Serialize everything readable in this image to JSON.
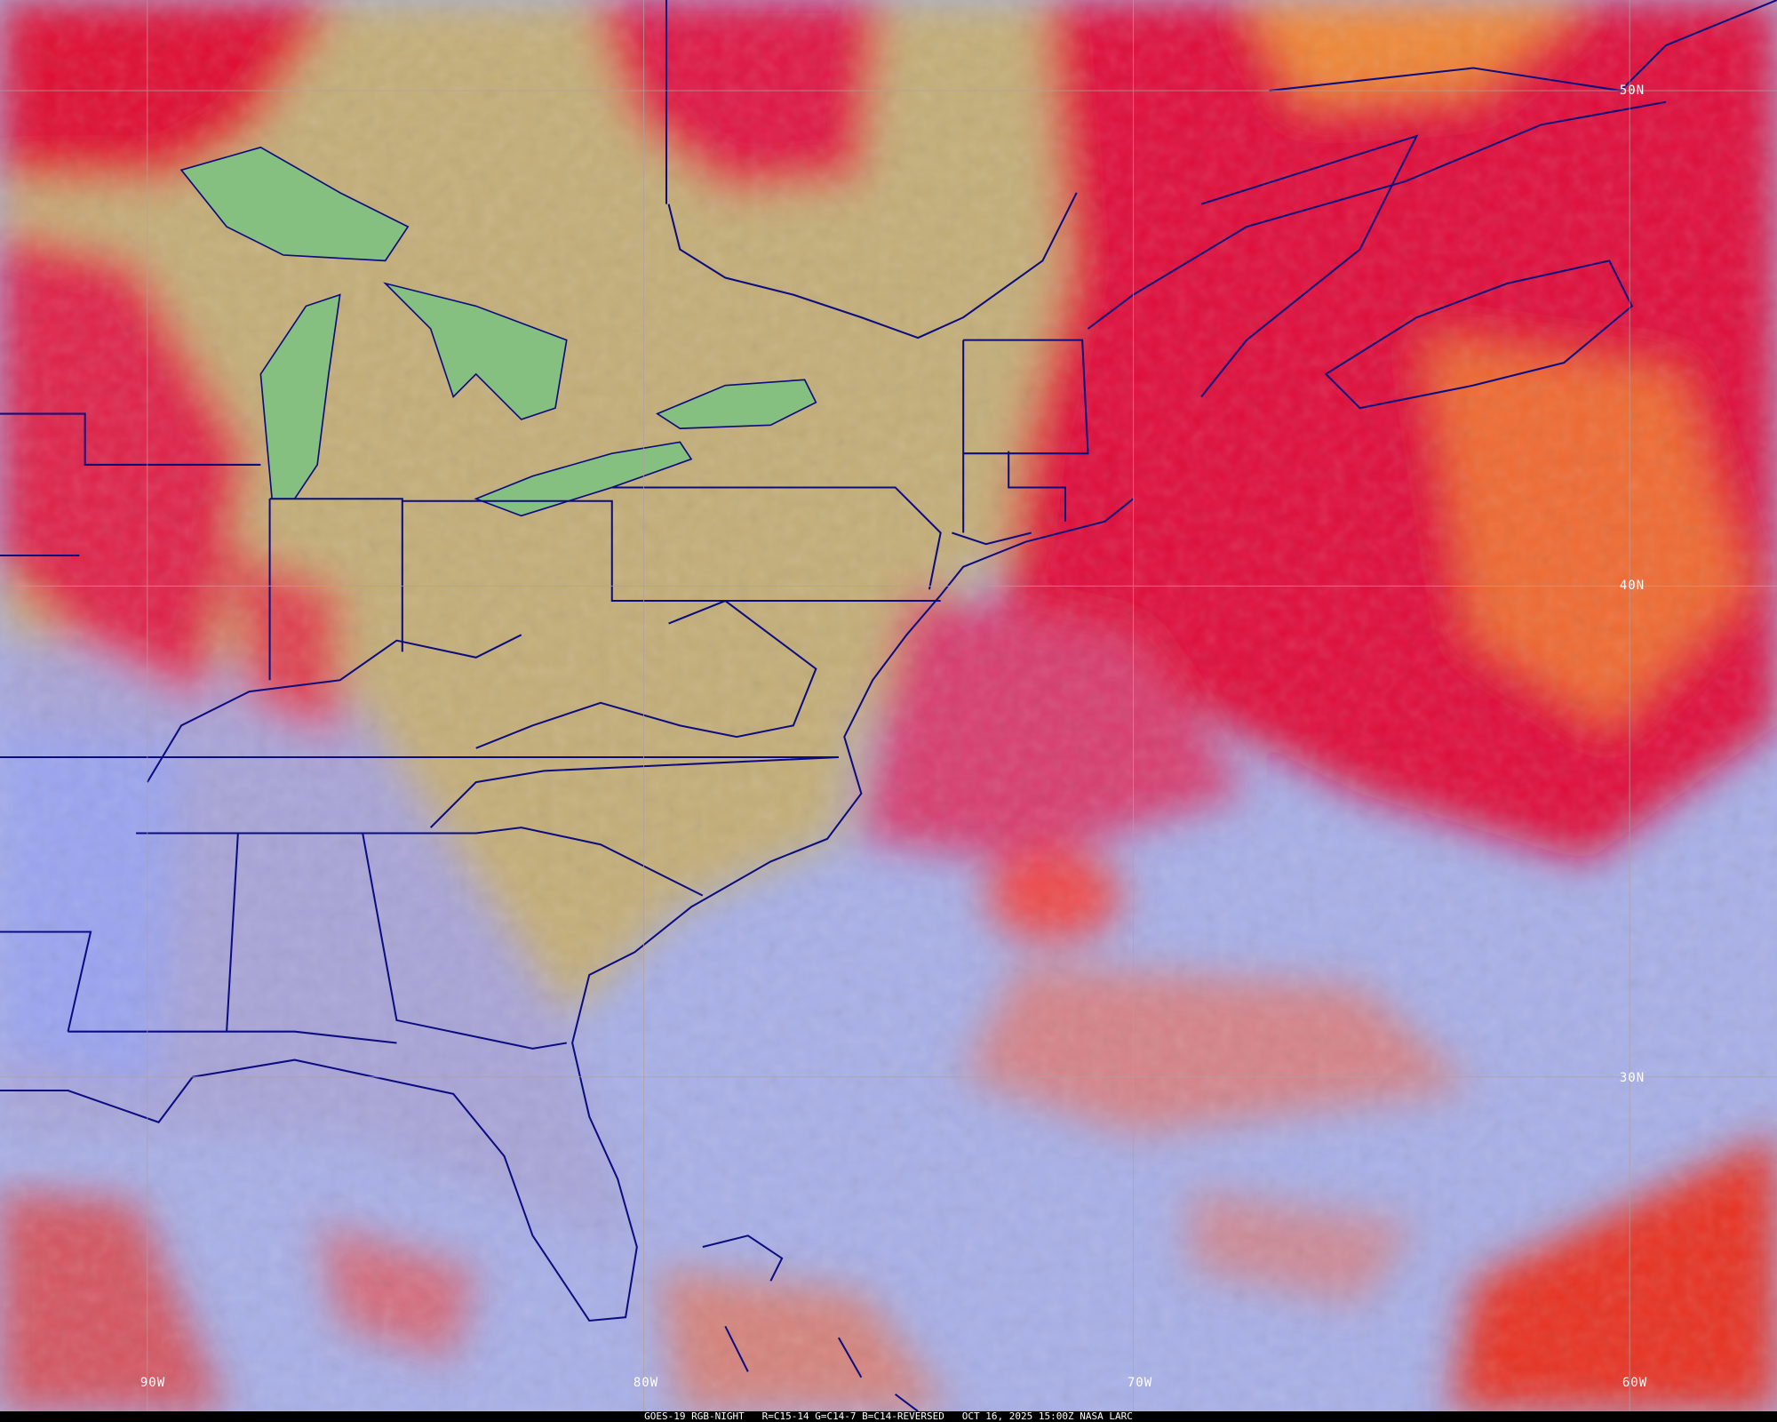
{
  "caption": {
    "satellite": "GOES-19 RGB-NIGHT",
    "recipe": "R=C15-14 G=C14-7 B=C14-REVERSED",
    "datetime": "OCT 16, 2025 15:00Z",
    "credit": "NASA LARC"
  },
  "graticule": {
    "latitudes": [
      "50N",
      "40N",
      "30N"
    ],
    "longitudes": [
      "90W",
      "80W",
      "70W",
      "60W"
    ]
  },
  "colors": {
    "land_clear": "#c4b074",
    "high_cloud": "#e0103c",
    "mid_cloud": "#f07030",
    "low_cloud_ocean": "#a8b4ec",
    "lakes": "#80c07a",
    "borders": "#0c0c80",
    "gridlines": "#b0a0a0"
  }
}
